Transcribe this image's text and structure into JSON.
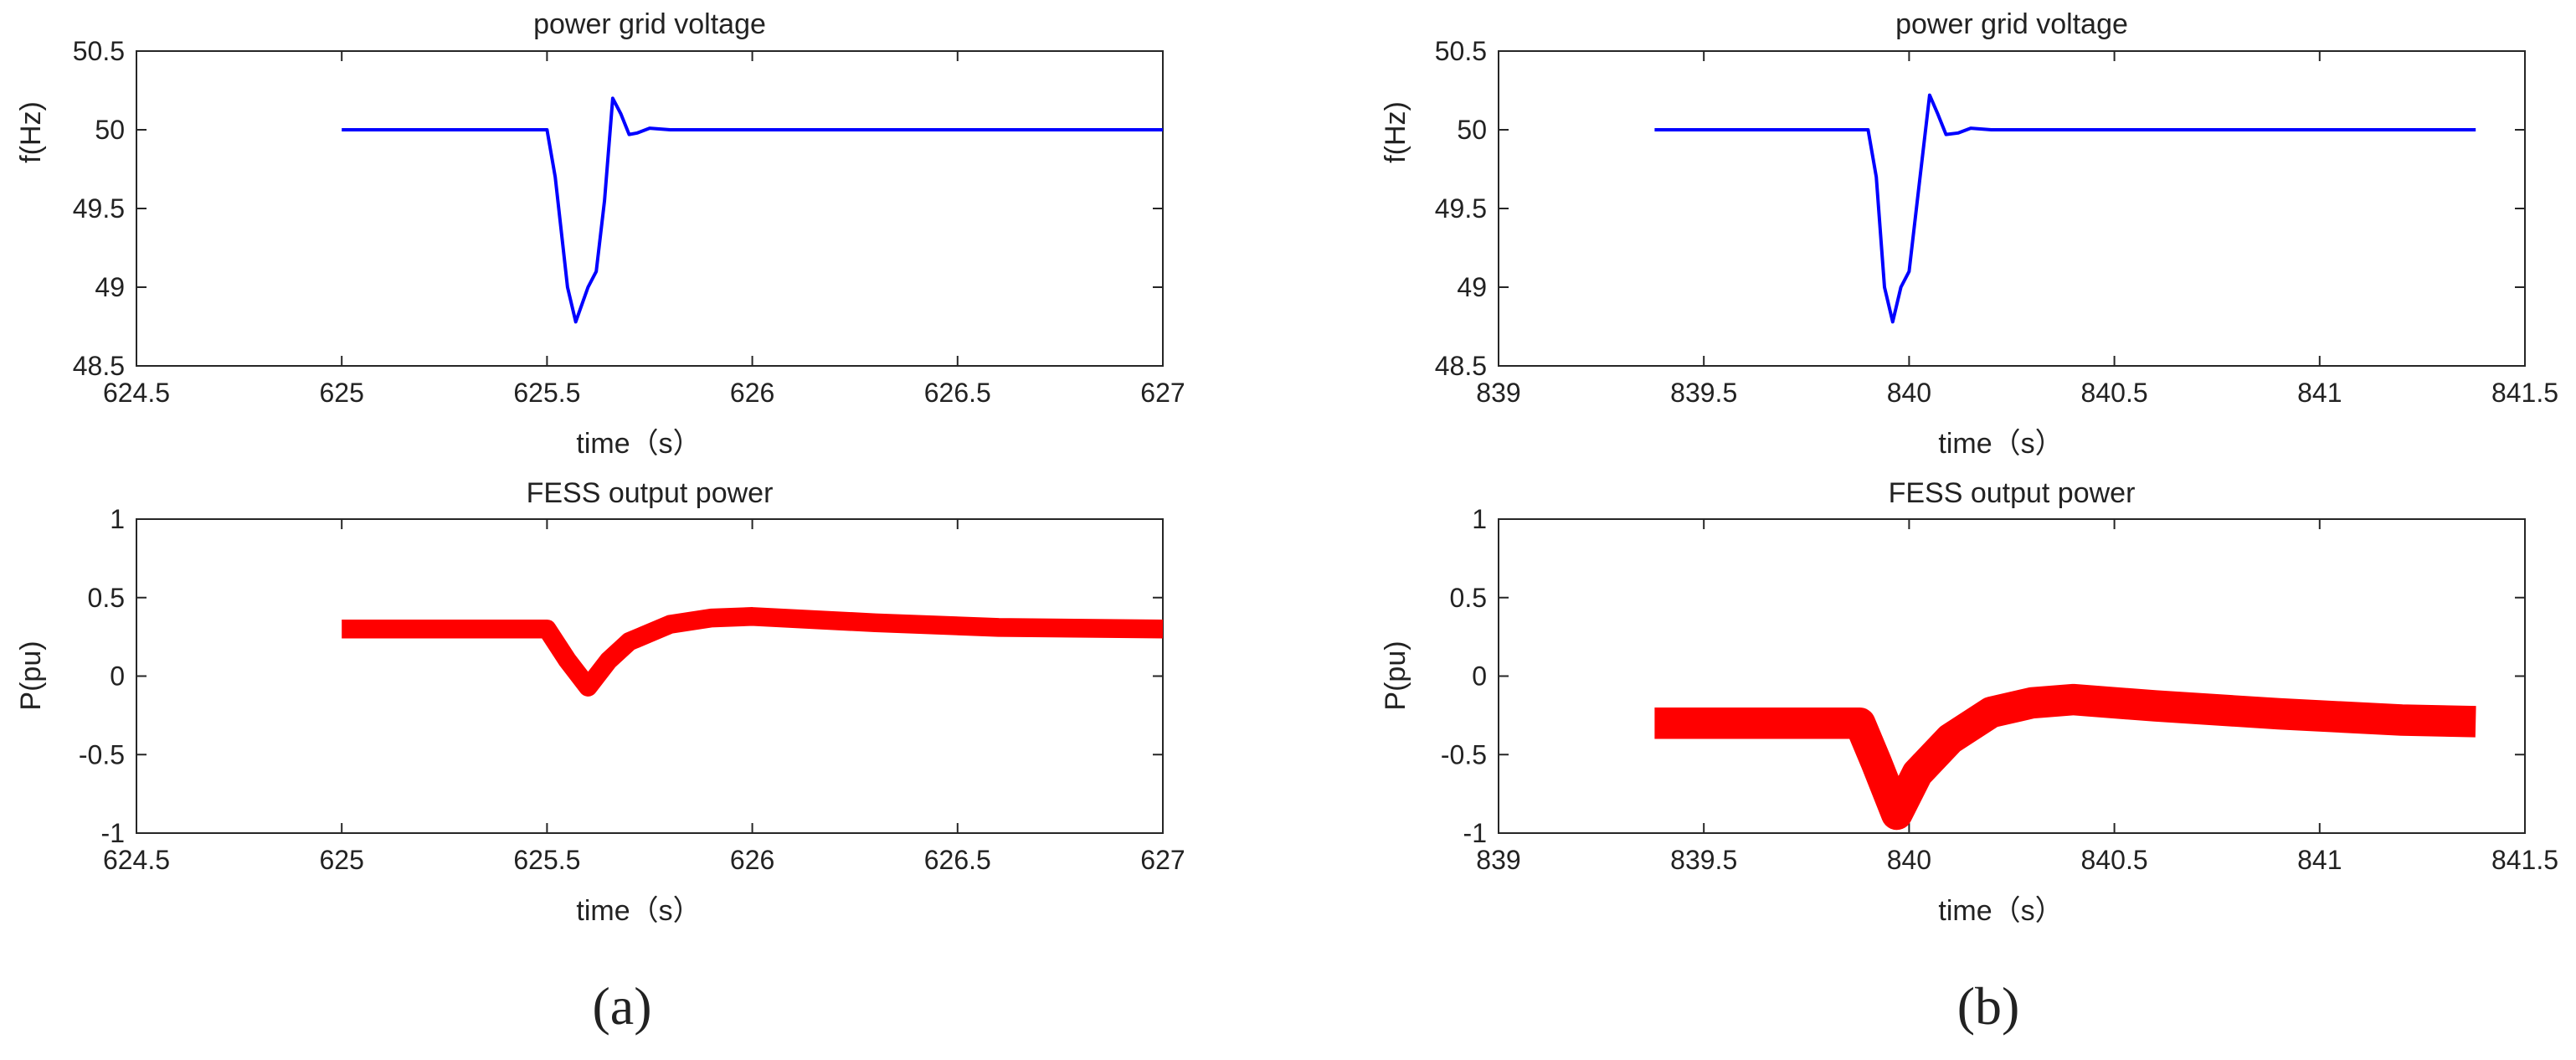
{
  "chart_data": [
    {
      "type": "line",
      "panel": "a",
      "title": "power grid voltage",
      "xlabel": "time（s）",
      "ylabel": "f(Hz)",
      "xlim": [
        624.5,
        627
      ],
      "ylim": [
        48.5,
        50.5
      ],
      "xticks": [
        624.5,
        625,
        625.5,
        626,
        626.5,
        627
      ],
      "yticks": [
        48.5,
        49,
        49.5,
        50,
        50.5
      ],
      "xtick_labels": [
        "624.5",
        "625",
        "625.5",
        "626",
        "626.5",
        "627"
      ],
      "ytick_labels": [
        "48.5",
        "49",
        "49.5",
        "50",
        "50.5"
      ],
      "grid": false,
      "series": [
        {
          "color": "#0000ff",
          "x": [
            625.0,
            625.5,
            625.52,
            625.55,
            625.57,
            625.6,
            625.62,
            625.64,
            625.66,
            625.68,
            625.7,
            625.72,
            625.75,
            625.8,
            627.0
          ],
          "y": [
            50.0,
            50.0,
            49.7,
            49.0,
            48.78,
            49.0,
            49.1,
            49.55,
            50.2,
            50.1,
            49.97,
            49.98,
            50.01,
            50.0,
            50.0
          ]
        }
      ]
    },
    {
      "type": "line",
      "panel": "a",
      "title": "FESS output power",
      "xlabel": "time（s）",
      "ylabel": "P(pu)",
      "xlim": [
        624.5,
        627
      ],
      "ylim": [
        -1,
        1
      ],
      "xticks": [
        624.5,
        625,
        625.5,
        626,
        626.5,
        627
      ],
      "yticks": [
        -1,
        -0.5,
        0,
        0.5,
        1
      ],
      "xtick_labels": [
        "624.5",
        "625",
        "625.5",
        "626",
        "626.5",
        "627"
      ],
      "ytick_labels": [
        "-1",
        "-0.5",
        "0",
        "0.5",
        "1"
      ],
      "grid": false,
      "band_halfwidth": 0.06,
      "series": [
        {
          "color": "#ff0000",
          "x": [
            625.0,
            625.5,
            625.55,
            625.6,
            625.65,
            625.7,
            625.8,
            625.9,
            626.0,
            626.3,
            626.6,
            627.0
          ],
          "y": [
            0.3,
            0.3,
            0.1,
            -0.07,
            0.1,
            0.22,
            0.33,
            0.37,
            0.38,
            0.34,
            0.31,
            0.3
          ]
        }
      ]
    },
    {
      "type": "line",
      "panel": "b",
      "title": "power grid voltage",
      "xlabel": "time（s）",
      "ylabel": "f(Hz)",
      "xlim": [
        839,
        841.5
      ],
      "ylim": [
        48.5,
        50.5
      ],
      "xticks": [
        839,
        839.5,
        840,
        840.5,
        841,
        841.5
      ],
      "yticks": [
        48.5,
        49,
        49.5,
        50,
        50.5
      ],
      "xtick_labels": [
        "839",
        "839.5",
        "840",
        "840.5",
        "841",
        "841.5"
      ],
      "ytick_labels": [
        "48.5",
        "49",
        "49.5",
        "50",
        "50.5"
      ],
      "grid": false,
      "series": [
        {
          "color": "#0000ff",
          "x": [
            839.38,
            839.9,
            839.92,
            839.94,
            839.96,
            839.98,
            840.0,
            840.02,
            840.05,
            840.07,
            840.09,
            840.12,
            840.15,
            840.2,
            841.38
          ],
          "y": [
            50.0,
            50.0,
            49.7,
            49.0,
            48.78,
            49.0,
            49.1,
            49.55,
            50.22,
            50.1,
            49.97,
            49.98,
            50.01,
            50.0,
            50.0
          ]
        }
      ]
    },
    {
      "type": "line",
      "panel": "b",
      "title": "FESS output power",
      "xlabel": "time（s）",
      "ylabel": "P(pu)",
      "xlim": [
        839,
        841.5
      ],
      "ylim": [
        -1,
        1
      ],
      "xticks": [
        839,
        839.5,
        840,
        840.5,
        841,
        841.5
      ],
      "yticks": [
        -1,
        -0.5,
        0,
        0.5,
        1
      ],
      "xtick_labels": [
        "839",
        "839.5",
        "840",
        "840.5",
        "841",
        "841.5"
      ],
      "ytick_labels": [
        "-1",
        "-0.5",
        "0",
        "0.5",
        "1"
      ],
      "grid": false,
      "band_halfwidth": 0.1,
      "series": [
        {
          "color": "#ff0000",
          "x": [
            839.38,
            839.88,
            839.92,
            839.97,
            840.02,
            840.1,
            840.2,
            840.3,
            840.4,
            840.6,
            840.9,
            841.2,
            841.38
          ],
          "y": [
            -0.3,
            -0.3,
            -0.55,
            -0.88,
            -0.62,
            -0.4,
            -0.23,
            -0.17,
            -0.15,
            -0.19,
            -0.24,
            -0.28,
            -0.29
          ]
        }
      ]
    }
  ],
  "panel_labels": [
    "(a)",
    "(b)"
  ]
}
